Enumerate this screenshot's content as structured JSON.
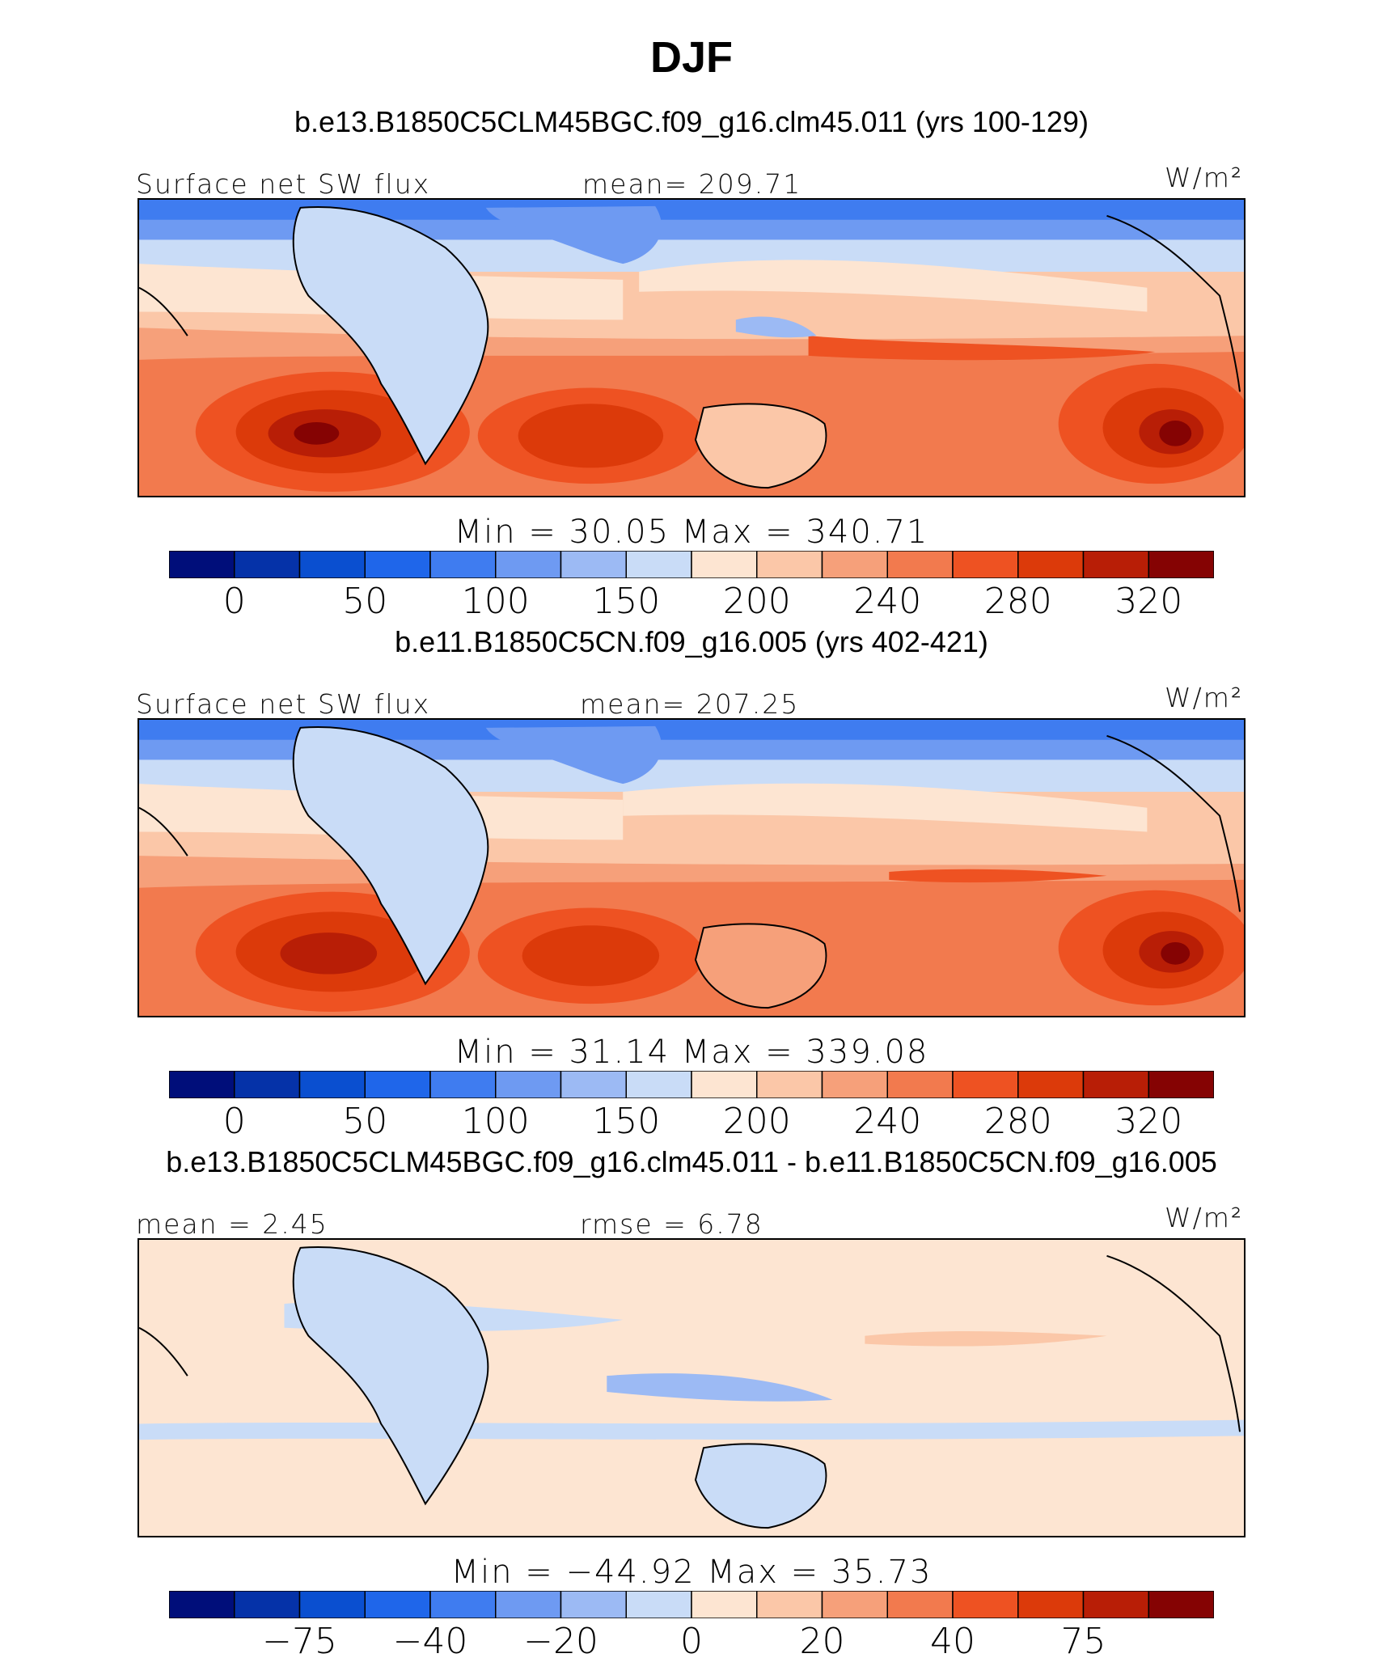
{
  "title": "DJF",
  "panels": [
    {
      "case": "b.e13.B1850C5CLM45BGC.f09_g16.clm45.011 (yrs 100-129)",
      "left_label": "Surface net SW flux",
      "center_label": "mean= 209.71",
      "units": "W/m²",
      "minmax": "Min =   30.05  Max  =  340.71",
      "colorbar": {
        "colors": [
          "#000e7a",
          "#0532a8",
          "#0a4fd0",
          "#1f66ea",
          "#3f7cf0",
          "#6e9af2",
          "#9cbaf4",
          "#c9dcf7",
          "#fde5d2",
          "#fbc7a8",
          "#f6a07a",
          "#f27a4e",
          "#ee5222",
          "#dc3a0a",
          "#b81e06",
          "#850303"
        ],
        "ticks": [
          "0",
          "50",
          "100",
          "150",
          "200",
          "240",
          "280",
          "320"
        ]
      }
    },
    {
      "case": "b.e11.B1850C5CN.f09_g16.005 (yrs 402-421)",
      "left_label": "Surface net SW flux",
      "center_label": "mean= 207.25",
      "units": "W/m²",
      "minmax": "Min =   31.14  Max  =  339.08",
      "colorbar": {
        "colors": [
          "#000e7a",
          "#0532a8",
          "#0a4fd0",
          "#1f66ea",
          "#3f7cf0",
          "#6e9af2",
          "#9cbaf4",
          "#c9dcf7",
          "#fde5d2",
          "#fbc7a8",
          "#f6a07a",
          "#f27a4e",
          "#ee5222",
          "#dc3a0a",
          "#b81e06",
          "#850303"
        ],
        "ticks": [
          "0",
          "50",
          "100",
          "150",
          "200",
          "240",
          "280",
          "320"
        ]
      }
    },
    {
      "case": "b.e13.B1850C5CLM45BGC.f09_g16.clm45.011 - b.e11.B1850C5CN.f09_g16.005",
      "left_label": "mean =    2.45",
      "center_label": "rmse =    6.78",
      "units": "W/m²",
      "minmax": "Min = −44.92  Max =   35.73",
      "colorbar": {
        "colors": [
          "#000e7a",
          "#0532a8",
          "#0a4fd0",
          "#1f66ea",
          "#3f7cf0",
          "#6e9af2",
          "#9cbaf4",
          "#c9dcf7",
          "#fde5d2",
          "#fbc7a8",
          "#f6a07a",
          "#f27a4e",
          "#ee5222",
          "#dc3a0a",
          "#b81e06",
          "#850303"
        ],
        "ticks": [
          "−75",
          "−40",
          "−20",
          "0",
          "20",
          "40",
          "75"
        ]
      }
    }
  ]
}
